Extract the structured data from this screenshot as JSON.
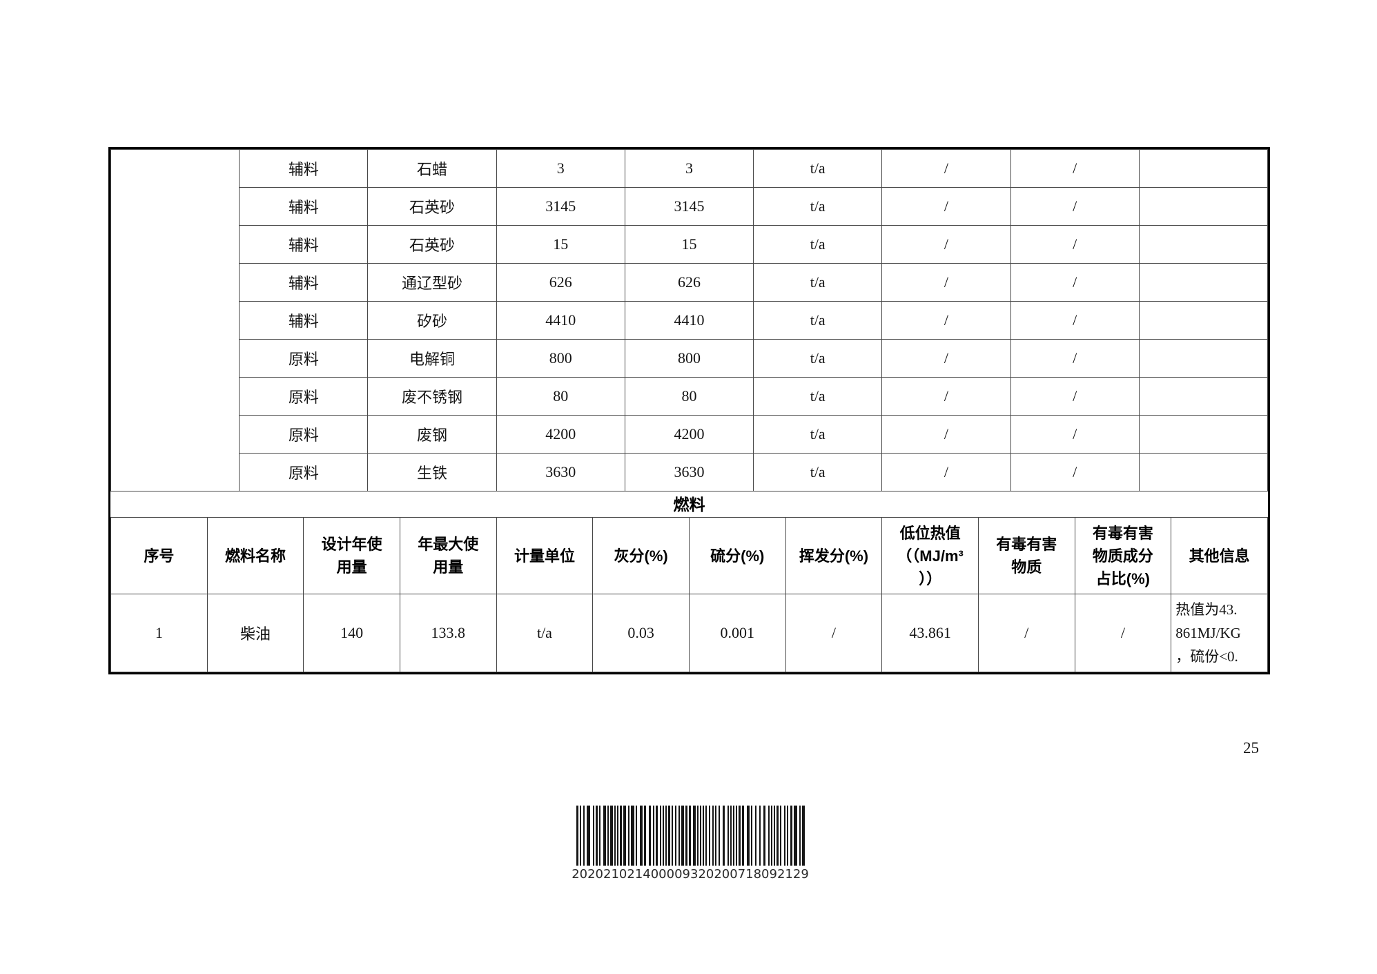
{
  "page": {
    "number": "25"
  },
  "materials_table": {
    "rows": [
      {
        "category": "辅料",
        "name": "石蜡",
        "annual": "3",
        "max": "3",
        "unit": "t/a",
        "slash1": "/",
        "slash2": "/",
        "extra": ""
      },
      {
        "category": "辅料",
        "name": "石英砂",
        "annual": "3145",
        "max": "3145",
        "unit": "t/a",
        "slash1": "/",
        "slash2": "/",
        "extra": ""
      },
      {
        "category": "辅料",
        "name": "石英砂",
        "annual": "15",
        "max": "15",
        "unit": "t/a",
        "slash1": "/",
        "slash2": "/",
        "extra": ""
      },
      {
        "category": "辅料",
        "name": "通辽型砂",
        "annual": "626",
        "max": "626",
        "unit": "t/a",
        "slash1": "/",
        "slash2": "/",
        "extra": ""
      },
      {
        "category": "辅料",
        "name": "矽砂",
        "annual": "4410",
        "max": "4410",
        "unit": "t/a",
        "slash1": "/",
        "slash2": "/",
        "extra": ""
      },
      {
        "category": "原料",
        "name": "电解铜",
        "annual": "800",
        "max": "800",
        "unit": "t/a",
        "slash1": "/",
        "slash2": "/",
        "extra": ""
      },
      {
        "category": "原料",
        "name": "废不锈钢",
        "annual": "80",
        "max": "80",
        "unit": "t/a",
        "slash1": "/",
        "slash2": "/",
        "extra": ""
      },
      {
        "category": "原料",
        "name": "废钢",
        "annual": "4200",
        "max": "4200",
        "unit": "t/a",
        "slash1": "/",
        "slash2": "/",
        "extra": ""
      },
      {
        "category": "原料",
        "name": "生铁",
        "annual": "3630",
        "max": "3630",
        "unit": "t/a",
        "slash1": "/",
        "slash2": "/",
        "extra": ""
      }
    ]
  },
  "fuel_section": {
    "banner": "燃料",
    "headers": [
      "序号",
      "燃料名称",
      "设计年使\n用量",
      "年最大使\n用量",
      "计量单位",
      "灰分(%)",
      "硫分(%)",
      "挥发分(%)",
      "低位热值\n（（MJ/m³\n））",
      "有毒有害\n物质",
      "有毒有害\n物质成分\n占比(%)",
      "其他信息"
    ],
    "rows": [
      [
        "1",
        "柴油",
        "140",
        "133.8",
        "t/a",
        "0.03",
        "0.001",
        "/",
        "43.861",
        "/",
        "/",
        "热值为43.\n861MJ/KG\n，硫份<0."
      ]
    ]
  },
  "barcode": {
    "digits": "202021021400009320200718092129"
  }
}
